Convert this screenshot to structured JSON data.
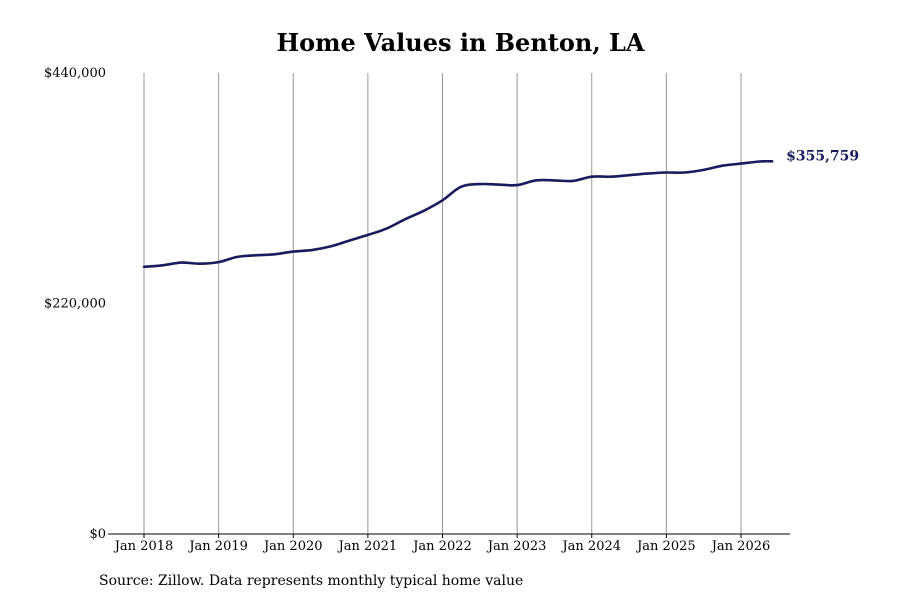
{
  "chart_data": {
    "type": "line",
    "title": "Home Values in Benton, LA",
    "xlabel": "",
    "ylabel": "",
    "ylim": [
      0,
      440000
    ],
    "xlim": [
      "2018-01",
      "2026-08"
    ],
    "x_tick_labels": [
      "Jan 2018",
      "Jan 2019",
      "Jan 2020",
      "Jan 2021",
      "Jan 2022",
      "Jan 2023",
      "Jan 2024",
      "Jan 2025",
      "Jan 2026"
    ],
    "y_tick_labels": [
      "$0",
      "$220,000",
      "$440,000"
    ],
    "y_ticks": [
      0,
      220000,
      440000
    ],
    "grid": "vertical",
    "line_color": "#1a1a5e",
    "end_label": "$355,759",
    "series": [
      {
        "x": [
          "2018-01",
          "2018-04",
          "2018-07",
          "2018-10",
          "2019-01",
          "2019-04",
          "2019-07",
          "2019-10",
          "2020-01",
          "2020-04",
          "2020-07",
          "2020-10",
          "2021-01",
          "2021-04",
          "2021-07",
          "2021-10",
          "2022-01",
          "2022-04",
          "2022-07",
          "2022-10",
          "2023-01",
          "2023-04",
          "2023-07",
          "2023-10",
          "2024-01",
          "2024-04",
          "2024-07",
          "2024-10",
          "2025-01",
          "2025-04",
          "2025-07",
          "2025-10",
          "2026-01",
          "2026-04",
          "2026-06"
        ],
        "values": [
          255000,
          256500,
          259000,
          258000,
          259500,
          264500,
          266000,
          267000,
          269500,
          271000,
          274500,
          280000,
          285500,
          291500,
          300500,
          308500,
          318500,
          331500,
          334000,
          333500,
          333000,
          337500,
          337500,
          337000,
          341000,
          341000,
          342500,
          344000,
          345000,
          345000,
          347500,
          351500,
          353500,
          355500,
          355759
        ]
      }
    ]
  },
  "source_text": "Source: Zillow. Data represents monthly typical home value"
}
